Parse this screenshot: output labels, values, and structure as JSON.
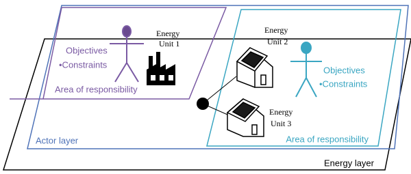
{
  "layers": {
    "energy": "Energy layer",
    "actor": "Actor layer"
  },
  "areas": [
    {
      "items": [
        "Objectives",
        "•Constraints"
      ],
      "label": "Area of responsibility"
    },
    {
      "items": [
        "Objectives",
        "•Constraints"
      ],
      "label": "Area of responsibility"
    }
  ],
  "units": [
    {
      "lines": [
        "Energy",
        "Unit 1"
      ]
    },
    {
      "lines": [
        "Energy",
        "Unit 2"
      ]
    },
    {
      "lines": [
        "Energy",
        "Unit 3"
      ]
    }
  ]
}
